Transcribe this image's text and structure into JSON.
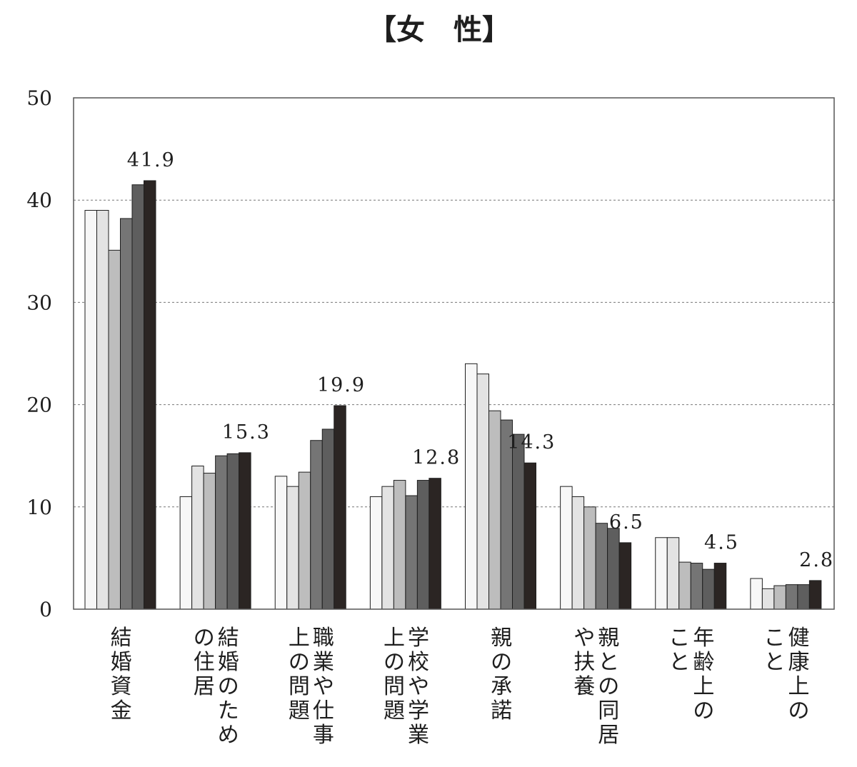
{
  "chart_data": {
    "type": "bar",
    "title": "【女　性】",
    "ylim": [
      0,
      50
    ],
    "y_ticks": [
      0,
      10,
      20,
      30,
      40,
      50
    ],
    "grid": "horizontal-dashed",
    "categories": [
      [
        "結婚資金"
      ],
      [
        "結婚のため",
        "の住居"
      ],
      [
        "職業や仕事",
        "上の問題"
      ],
      [
        "学校や学業",
        "上の問題"
      ],
      [
        "親の承諾"
      ],
      [
        "親との同居",
        "や扶養"
      ],
      [
        "年齢上の",
        "こと"
      ],
      [
        "健康上の",
        "こと"
      ]
    ],
    "series_colors": [
      "#f7f7f7",
      "#e3e3e3",
      "#bdbdbd",
      "#757575",
      "#5e5e5e",
      "#2b2523"
    ],
    "series": [
      {
        "values": [
          39.0,
          11.0,
          13.0,
          11.0,
          24.0,
          12.0,
          7.0,
          3.0
        ]
      },
      {
        "values": [
          39.0,
          14.0,
          12.0,
          12.0,
          23.0,
          11.0,
          7.0,
          2.0
        ]
      },
      {
        "values": [
          35.1,
          13.3,
          13.4,
          12.6,
          19.4,
          10.0,
          4.6,
          2.3
        ]
      },
      {
        "values": [
          38.2,
          15.0,
          16.5,
          11.1,
          18.5,
          8.4,
          4.5,
          2.4
        ]
      },
      {
        "values": [
          41.5,
          15.2,
          17.6,
          12.6,
          17.1,
          7.9,
          3.9,
          2.4
        ]
      },
      {
        "values": [
          41.9,
          15.3,
          19.9,
          12.8,
          14.3,
          6.5,
          4.5,
          2.8
        ]
      }
    ],
    "data_labels": [
      "41.9",
      "15.3",
      "19.9",
      "12.8",
      "14.3",
      "6.5",
      "4.5",
      "2.8"
    ]
  }
}
